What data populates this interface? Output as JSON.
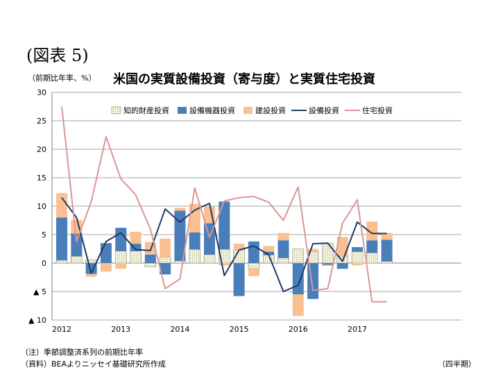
{
  "figure_label": "(図表 5)",
  "y_unit_label": "（前期比年率、%）",
  "title": "米国の実質設備投資（寄与度）と実質住宅投資",
  "note_line1": "（注）季節調整済系列の前期比年率",
  "note_line2": "（資料）BEAよりニッセイ基礎研究所作成",
  "x_unit_label": "（四半期）",
  "colors": {
    "ip": "#f4f4de",
    "equipment": "#4a7ebb",
    "structures": "#fac090",
    "total_line": "#1f3864",
    "housing_line": "#d99694",
    "grid": "#a6a6a6"
  },
  "chart_data": {
    "type": "bar",
    "stacked": true,
    "ylim": [
      -10,
      30
    ],
    "yticks": [
      30,
      25,
      20,
      15,
      10,
      5,
      0,
      -5,
      -10
    ],
    "ytick_labels": [
      "30",
      "25",
      "20",
      "15",
      "10",
      "5",
      "0",
      "▲ 5",
      "▲ 10"
    ],
    "year_labels": [
      {
        "label": "2012",
        "quarter_index": 0
      },
      {
        "label": "2013",
        "quarter_index": 4
      },
      {
        "label": "2014",
        "quarter_index": 8
      },
      {
        "label": "2015",
        "quarter_index": 12
      },
      {
        "label": "2016",
        "quarter_index": 16
      },
      {
        "label": "2017",
        "quarter_index": 20
      }
    ],
    "legend_position": "top-right",
    "grid": true,
    "quarters": [
      "2012Q1",
      "2012Q2",
      "2012Q3",
      "2012Q4",
      "2013Q1",
      "2013Q2",
      "2013Q3",
      "2013Q4",
      "2014Q1",
      "2014Q2",
      "2014Q3",
      "2014Q4",
      "2015Q1",
      "2015Q2",
      "2015Q3",
      "2015Q4",
      "2016Q1",
      "2016Q2",
      "2016Q3",
      "2016Q4",
      "2017Q1",
      "2017Q2",
      "2017Q3"
    ],
    "series": [
      {
        "name": "知的財産投資",
        "key": "ip",
        "kind": "bar",
        "values": [
          0.5,
          1.2,
          0.6,
          0,
          2.1,
          2.1,
          -0.7,
          1.0,
          0.4,
          2.4,
          1.5,
          2.4,
          2.3,
          -1.0,
          1.4,
          0.9,
          2.5,
          2.0,
          3.5,
          1.2,
          2.0,
          1.8,
          0.3
        ]
      },
      {
        "name": "設備機器投資",
        "key": "equipment",
        "kind": "bar",
        "values": [
          7.5,
          4.0,
          -1.9,
          3.5,
          4.1,
          1.3,
          1.5,
          -2.0,
          8.8,
          3.0,
          5.5,
          8.4,
          -5.8,
          3.8,
          0.6,
          3.1,
          -5.5,
          -6.3,
          -0.3,
          -1.0,
          0.8,
          2.2,
          3.8
        ]
      },
      {
        "name": "建設投資",
        "key": "structures",
        "kind": "bar",
        "values": [
          4.3,
          2.4,
          -0.5,
          -1.5,
          -1.0,
          2.1,
          2.2,
          3.3,
          0.5,
          5.0,
          2.9,
          -0.4,
          1.1,
          -1.3,
          1.0,
          1.3,
          -3.8,
          0.5,
          -0.2,
          3.4,
          -0.4,
          3.3,
          1.2
        ]
      },
      {
        "name": "設備投資",
        "key": "total_line",
        "kind": "line",
        "values": [
          11.5,
          8.0,
          -1.8,
          3.8,
          5.3,
          2.4,
          2.2,
          9.5,
          7.2,
          9.3,
          10.5,
          -2.2,
          2.3,
          3.0,
          1.5,
          -5.0,
          -3.9,
          3.4,
          3.5,
          0.3,
          7.2,
          5.2,
          5.2
        ]
      },
      {
        "name": "住宅投資",
        "key": "housing_line",
        "kind": "line",
        "values": [
          27.5,
          3.8,
          10.8,
          22.2,
          14.8,
          12.0,
          6.0,
          -4.5,
          -2.8,
          13.2,
          4.5,
          10.9,
          11.5,
          11.7,
          10.7,
          7.5,
          13.4,
          -4.8,
          -4.5,
          7.0,
          11.1,
          -6.8,
          -6.8
        ]
      }
    ]
  }
}
